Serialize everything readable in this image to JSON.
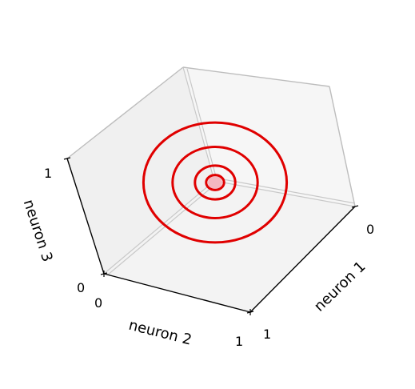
{
  "chart_data": {
    "type": "line",
    "projection": "3d",
    "title": "",
    "axes": {
      "x": {
        "label": "neuron 1",
        "lim": [
          0,
          1
        ],
        "ticks": [
          "0",
          "1"
        ]
      },
      "y": {
        "label": "neuron 2",
        "lim": [
          0,
          1
        ],
        "ticks": [
          "0",
          "1"
        ]
      },
      "z": {
        "label": "neuron 3",
        "lim": [
          0,
          1
        ],
        "ticks": [
          "0",
          "1"
        ]
      }
    },
    "grid": true,
    "series_color": "#e00000",
    "center_point": {
      "x": 0.5,
      "y": 0.5,
      "z": 0.5,
      "color": "#f4b8c0"
    },
    "series": [
      {
        "shape": "ring",
        "radius": 0.04
      },
      {
        "shape": "ring",
        "radius": 0.09
      },
      {
        "shape": "ring",
        "radius": 0.19
      },
      {
        "shape": "ring",
        "radius": 0.32
      }
    ]
  }
}
